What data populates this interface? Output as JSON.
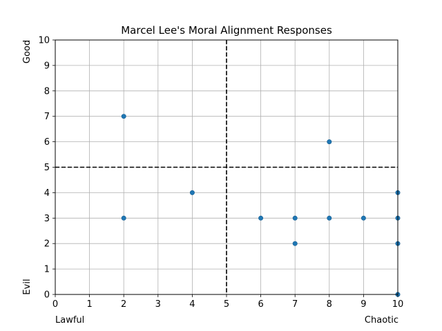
{
  "chart_data": {
    "type": "scatter",
    "title": "Marcel Lee's Moral Alignment Responses",
    "xlabel": "",
    "ylabel": "",
    "xlim": [
      0,
      10
    ],
    "ylim": [
      0,
      10
    ],
    "x_ticks": [
      0,
      1,
      2,
      3,
      4,
      5,
      6,
      7,
      8,
      9,
      10
    ],
    "y_ticks": [
      0,
      1,
      2,
      3,
      4,
      5,
      6,
      7,
      8,
      9,
      10
    ],
    "grid": true,
    "reference_lines": {
      "x": 5,
      "y": 5,
      "style": "dashed",
      "color": "#000000"
    },
    "corner_labels": {
      "x_low": "Lawful",
      "x_high": "Chaotic",
      "y_low": "Evil",
      "y_high": "Good"
    },
    "marker_color": "#1f77b4",
    "points": [
      {
        "x": 2,
        "y": 7
      },
      {
        "x": 2,
        "y": 3
      },
      {
        "x": 4,
        "y": 4
      },
      {
        "x": 6,
        "y": 3
      },
      {
        "x": 7,
        "y": 3
      },
      {
        "x": 7,
        "y": 2
      },
      {
        "x": 8,
        "y": 6
      },
      {
        "x": 8,
        "y": 3
      },
      {
        "x": 9,
        "y": 3
      },
      {
        "x": 10,
        "y": 4
      },
      {
        "x": 10,
        "y": 3
      },
      {
        "x": 10,
        "y": 2
      },
      {
        "x": 10,
        "y": 0
      }
    ]
  }
}
